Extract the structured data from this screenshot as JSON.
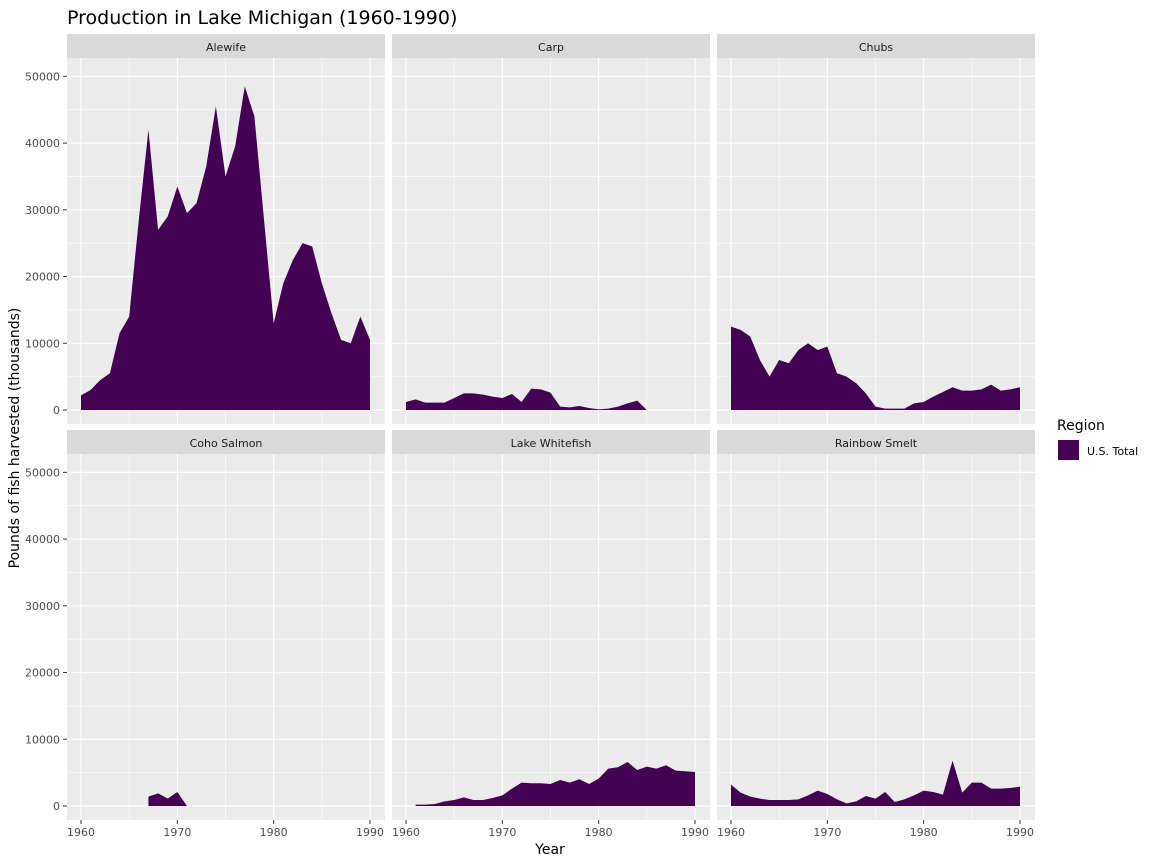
{
  "chart_data": {
    "type": "area",
    "title": "Production in Lake Michigan (1960-1990)",
    "xlabel": "Year",
    "ylabel": "Pounds of fish harvested (thousands)",
    "xlim": [
      1960,
      1990
    ],
    "ylim": [
      0,
      52000
    ],
    "x_ticks": [
      "1960",
      "1970",
      "1980",
      "1990"
    ],
    "y_ticks": [
      "0",
      "10000",
      "20000",
      "30000",
      "40000",
      "50000"
    ],
    "grid": true,
    "facet_layout": "2 rows x 3 columns, shared axes",
    "legend": {
      "title": "Region",
      "position": "right",
      "entries": [
        {
          "label": "U.S. Total",
          "color": "#440154"
        }
      ]
    },
    "colors": {
      "fill": "#440154",
      "panel_background": "#ebebeb",
      "strip_background": "#d9d9d9",
      "grid": "#ffffff"
    },
    "facets": [
      {
        "name": "Alewife",
        "x": [
          1960,
          1961,
          1962,
          1963,
          1964,
          1965,
          1966,
          1967,
          1968,
          1969,
          1970,
          1971,
          1972,
          1973,
          1974,
          1975,
          1976,
          1977,
          1978,
          1979,
          1980,
          1981,
          1982,
          1983,
          1984,
          1985,
          1986,
          1987,
          1988,
          1989,
          1990
        ],
        "values": [
          2200,
          3000,
          4500,
          5500,
          11500,
          14000,
          28500,
          42000,
          27000,
          29000,
          33500,
          29500,
          31000,
          36500,
          45500,
          35000,
          39500,
          48500,
          44000,
          28500,
          13000,
          19000,
          22500,
          25000,
          24500,
          19000,
          14500,
          10500,
          10000,
          14000,
          10500
        ]
      },
      {
        "name": "Carp",
        "x": [
          1960,
          1961,
          1962,
          1963,
          1964,
          1965,
          1966,
          1967,
          1968,
          1969,
          1970,
          1971,
          1972,
          1973,
          1974,
          1975,
          1976,
          1977,
          1978,
          1979,
          1980,
          1981,
          1982,
          1983,
          1984,
          1985
        ],
        "values": [
          1200,
          1600,
          1100,
          1100,
          1100,
          1800,
          2500,
          2500,
          2300,
          2000,
          1800,
          2400,
          1200,
          3200,
          3100,
          2600,
          500,
          400,
          600,
          300,
          100,
          200,
          500,
          1000,
          1400,
          0
        ]
      },
      {
        "name": "Chubs",
        "x": [
          1960,
          1961,
          1962,
          1963,
          1964,
          1965,
          1966,
          1967,
          1968,
          1969,
          1970,
          1971,
          1972,
          1973,
          1974,
          1975,
          1976,
          1977,
          1978,
          1979,
          1980,
          1981,
          1982,
          1983,
          1984,
          1985,
          1986,
          1987,
          1988,
          1989,
          1990
        ],
        "values": [
          12500,
          12000,
          11000,
          7500,
          5000,
          7500,
          7000,
          9000,
          10000,
          9000,
          9500,
          5500,
          5000,
          4000,
          2500,
          500,
          200,
          200,
          200,
          1000,
          1200,
          2000,
          2700,
          3400,
          2900,
          2900,
          3100,
          3800,
          2900,
          3100,
          3400
        ]
      },
      {
        "name": "Coho Salmon",
        "x": [
          1967,
          1968,
          1969,
          1970,
          1971
        ],
        "values": [
          1400,
          1900,
          1100,
          2100,
          0
        ]
      },
      {
        "name": "Lake Whitefish",
        "x": [
          1961,
          1962,
          1963,
          1964,
          1965,
          1966,
          1967,
          1968,
          1969,
          1970,
          1971,
          1972,
          1973,
          1974,
          1975,
          1976,
          1977,
          1978,
          1979,
          1980,
          1981,
          1982,
          1983,
          1984,
          1985,
          1986,
          1987,
          1988,
          1989,
          1990
        ],
        "values": [
          200,
          200,
          300,
          700,
          900,
          1300,
          900,
          900,
          1200,
          1600,
          2600,
          3500,
          3400,
          3400,
          3300,
          3900,
          3500,
          4000,
          3300,
          4100,
          5600,
          5800,
          6600,
          5400,
          5900,
          5600,
          6100,
          5300,
          5200,
          5100
        ]
      },
      {
        "name": "Rainbow Smelt",
        "x": [
          1960,
          1961,
          1962,
          1963,
          1964,
          1965,
          1966,
          1967,
          1968,
          1969,
          1970,
          1971,
          1972,
          1973,
          1974,
          1975,
          1976,
          1977,
          1978,
          1979,
          1980,
          1981,
          1982,
          1983,
          1984,
          1985,
          1986,
          1987,
          1988,
          1989,
          1990
        ],
        "values": [
          3200,
          2000,
          1400,
          1100,
          900,
          900,
          900,
          1000,
          1600,
          2300,
          1800,
          1000,
          400,
          700,
          1500,
          1100,
          2100,
          600,
          1000,
          1600,
          2300,
          2100,
          1700,
          6800,
          2000,
          3500,
          3500,
          2600,
          2600,
          2700,
          2900
        ]
      }
    ]
  }
}
